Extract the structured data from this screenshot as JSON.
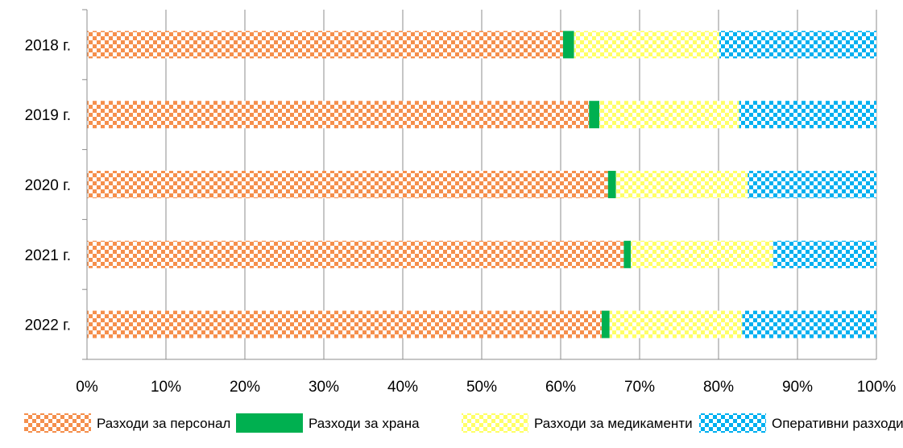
{
  "chart_data": {
    "type": "bar",
    "orientation": "horizontal",
    "stacked": "percent",
    "categories": [
      "2018 г.",
      "2019 г.",
      "2020 г.",
      "2021 г.",
      "2022 г."
    ],
    "series": [
      {
        "name": "Разходи за персонал",
        "values": [
          60.3,
          63.6,
          66.0,
          68.0,
          65.2
        ],
        "color": "#F58F4C",
        "pattern": "checker-light"
      },
      {
        "name": "Разходи за храна",
        "values": [
          1.4,
          1.3,
          1.0,
          0.9,
          1.0
        ],
        "color": "#00B050",
        "pattern": "solid"
      },
      {
        "name": "Разходи за медикаменти",
        "values": [
          18.4,
          17.7,
          16.7,
          18.0,
          16.8
        ],
        "color": "#FFFF66",
        "pattern": "checker-light"
      },
      {
        "name": "Оперативни разходи",
        "values": [
          19.9,
          17.4,
          16.3,
          13.1,
          17.0
        ],
        "color": "#00B0F0",
        "pattern": "checker-light"
      }
    ],
    "x_ticks": [
      "0%",
      "10%",
      "20%",
      "30%",
      "40%",
      "50%",
      "60%",
      "70%",
      "80%",
      "90%",
      "100%"
    ],
    "xlim": [
      0,
      100
    ],
    "grid": "vertical",
    "legend": "bottom"
  }
}
